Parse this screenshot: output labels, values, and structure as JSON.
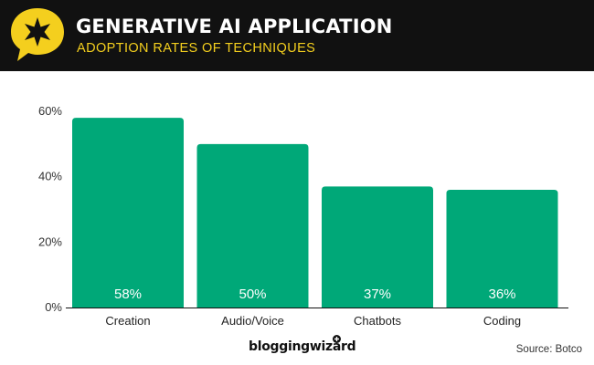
{
  "header": {
    "title": "GENERATIVE AI APPLICATION",
    "subtitle": "ADOPTION RATES OF TECHNIQUES",
    "background_color": "#111111",
    "title_color": "#ffffff",
    "subtitle_color": "#f4cf1e",
    "logo_icon": "star-speech-bubble-icon"
  },
  "chart_data": {
    "type": "bar",
    "title": "GENERATIVE AI APPLICATION",
    "subtitle": "ADOPTION RATES OF TECHNIQUES",
    "categories": [
      "Creation",
      "Audio/Voice",
      "Chatbots",
      "Coding"
    ],
    "values": [
      58,
      50,
      37,
      36
    ],
    "value_labels": [
      "58%",
      "50%",
      "37%",
      "36%"
    ],
    "yticks": [
      0,
      20,
      40,
      60
    ],
    "ytick_labels": [
      "0%",
      "20%",
      "40%",
      "60%"
    ],
    "ylim": [
      0,
      60
    ],
    "xlabel": "",
    "ylabel": "",
    "grid": false,
    "legend": "none",
    "bar_color": "#00a878"
  },
  "footer": {
    "brand": "bloggingwizard",
    "source": "Source: Botco"
  }
}
